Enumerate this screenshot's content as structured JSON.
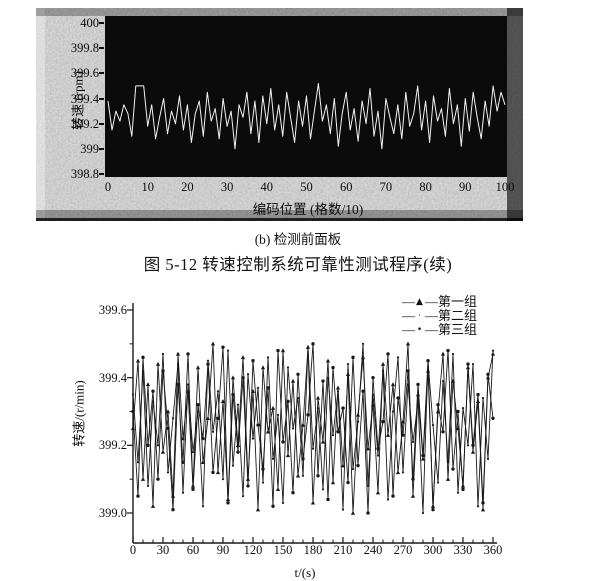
{
  "captions": {
    "sub": "(b) 检测前面板",
    "figure": "图 5-12   转速控制系统可靠性测试程序(续)"
  },
  "legend": {
    "dash": "—"
  },
  "chart_data": [
    {
      "type": "line",
      "title": "(b) 检测前面板",
      "xlabel": "编码位置 (格数/10)",
      "ylabel": "转速 (rpm)",
      "xlim": [
        0,
        100
      ],
      "ylim": [
        398.8,
        400
      ],
      "grid": false,
      "plot_bg": "#0b0b0b",
      "line_color": "#f2f2f2",
      "ytick_labels": [
        "400",
        "399.8",
        "399.6",
        "399.4",
        "399.2",
        "399",
        "398.8"
      ],
      "ytick_values": [
        400,
        399.8,
        399.6,
        399.4,
        399.2,
        399,
        398.8
      ],
      "xtick_labels": [
        "0",
        "10",
        "20",
        "30",
        "40",
        "50",
        "60",
        "70",
        "80",
        "90",
        "100"
      ],
      "xtick_values": [
        0,
        10,
        20,
        30,
        40,
        50,
        60,
        70,
        80,
        90,
        100
      ],
      "x_step": 1,
      "values": [
        399.38,
        399.15,
        399.3,
        399.22,
        399.35,
        399.28,
        399.1,
        399.5,
        399.5,
        399.5,
        399.18,
        399.35,
        399.08,
        399.25,
        399.4,
        399.12,
        399.3,
        399.2,
        399.42,
        399.15,
        399.35,
        399.05,
        399.28,
        399.38,
        399.1,
        399.45,
        399.22,
        399.32,
        399.08,
        399.4,
        399.18,
        399.3,
        399.0,
        399.35,
        399.25,
        399.45,
        399.12,
        399.38,
        399.05,
        399.42,
        399.2,
        399.48,
        399.15,
        399.35,
        399.1,
        399.45,
        399.25,
        399.05,
        399.38,
        399.18,
        399.42,
        399.08,
        399.3,
        399.52,
        399.22,
        399.35,
        399.12,
        399.4,
        399.02,
        399.28,
        399.45,
        399.15,
        399.32,
        399.06,
        399.38,
        399.2,
        399.48,
        399.1,
        399.3,
        399.0,
        399.4,
        399.25,
        399.12,
        399.35,
        399.08,
        399.45,
        399.18,
        399.28,
        399.5,
        399.15,
        399.38,
        399.05,
        399.42,
        399.22,
        399.32,
        399.1,
        399.48,
        399.2,
        399.35,
        399.02,
        399.4,
        399.14,
        399.45,
        399.25,
        399.08,
        399.38,
        399.18,
        399.5,
        399.3,
        399.45,
        399.35
      ]
    },
    {
      "type": "line",
      "xlabel_partial": "t/(s)",
      "ylabel": "转速/(r/min)",
      "xlim": [
        0,
        360
      ],
      "ylim": [
        399.0,
        399.6
      ],
      "grid": false,
      "legend_position": "top-right",
      "line_color": "#1a1a1a",
      "ytick_labels": [
        "399.0",
        "399.2",
        "399.4",
        "399.6"
      ],
      "ytick_values": [
        399.0,
        399.2,
        399.4,
        399.6
      ],
      "ytick_minor_values": [
        399.1,
        399.3,
        399.5
      ],
      "xtick_labels": [
        "0",
        "30",
        "60",
        "90",
        "120",
        "150",
        "180",
        "210",
        "240",
        "270",
        "300",
        "330",
        "360"
      ],
      "xtick_values": [
        0,
        30,
        60,
        90,
        120,
        150,
        180,
        210,
        240,
        270,
        300,
        330,
        360
      ],
      "xtick_minor_step": 10,
      "x_step": 5,
      "series": [
        {
          "name": "第一组",
          "marker": "triangle",
          "legend_glyph": "▲",
          "values": [
            399.25,
            399.45,
            399.1,
            399.38,
            399.02,
            399.44,
            399.18,
            399.3,
            399.05,
            399.47,
            399.22,
            399.36,
            399.08,
            399.43,
            399.15,
            399.28,
            399.5,
            399.12,
            399.33,
            399.04,
            399.4,
            399.2,
            399.46,
            399.1,
            399.36,
            399.01,
            399.43,
            399.24,
            399.31,
            399.07,
            399.48,
            399.17,
            399.39,
            399.11,
            399.26,
            399.49,
            399.03,
            399.34,
            399.21,
            399.45,
            399.09,
            399.37,
            399.14,
            399.41,
            399.0,
            399.29,
            399.46,
            399.19,
            399.32,
            399.06,
            399.44,
            399.23,
            399.38,
            399.12,
            399.27,
            399.5,
            399.05,
            399.35,
            399.16,
            399.42,
            399.02,
            399.3,
            399.47,
            399.1,
            399.39,
            399.25,
            399.08,
            399.43,
            399.18,
            399.33,
            399.01,
            399.4,
            399.47
          ]
        },
        {
          "name": "第二组",
          "marker": "dot",
          "legend_glyph": "·",
          "values": [
            399.35,
            399.15,
            399.42,
            399.08,
            399.33,
            399.2,
            399.47,
            399.12,
            399.28,
            399.44,
            399.06,
            399.38,
            399.18,
            399.3,
            399.02,
            399.45,
            399.24,
            399.36,
            399.1,
            399.48,
            399.14,
            399.32,
            399.05,
            399.41,
            399.22,
            399.37,
            399.09,
            399.46,
            399.16,
            399.29,
            399.03,
            399.43,
            399.25,
            399.34,
            399.11,
            399.49,
            399.19,
            399.31,
            399.07,
            399.4,
            399.23,
            399.36,
            399.01,
            399.44,
            399.13,
            399.27,
            399.5,
            399.08,
            399.35,
            399.17,
            399.42,
            399.04,
            399.3,
            399.46,
            399.12,
            399.38,
            399.21,
            399.33,
            399.0,
            399.45,
            399.26,
            399.09,
            399.39,
            399.15,
            399.47,
            399.06,
            399.31,
            399.2,
            399.44,
            399.02,
            399.34,
            399.16,
            399.48
          ]
        },
        {
          "name": "第三组",
          "marker": "circle",
          "legend_glyph": "•",
          "values": [
            399.3,
            399.05,
            399.46,
            399.2,
            399.36,
            399.1,
            399.42,
            399.25,
            399.01,
            399.38,
            399.15,
            399.47,
            399.07,
            399.32,
            399.22,
            399.44,
            399.12,
            399.28,
            399.49,
            399.03,
            399.35,
            399.18,
            399.4,
            399.08,
            399.45,
            399.26,
            399.13,
            399.37,
            399.02,
            399.48,
            399.21,
            399.33,
            399.06,
            399.41,
            399.16,
            399.29,
            399.5,
            399.11,
            399.39,
            399.04,
            399.43,
            399.24,
            399.31,
            399.09,
            399.46,
            399.14,
            399.36,
            399.0,
            399.4,
            399.19,
            399.27,
            399.47,
            399.05,
            399.34,
            399.23,
            399.42,
            399.1,
            399.38,
            399.17,
            399.45,
            399.01,
            399.32,
            399.24,
            399.48,
            399.13,
            399.3,
            399.07,
            399.44,
            399.2,
            399.35,
            399.03,
            399.41,
            399.28
          ]
        }
      ]
    }
  ]
}
